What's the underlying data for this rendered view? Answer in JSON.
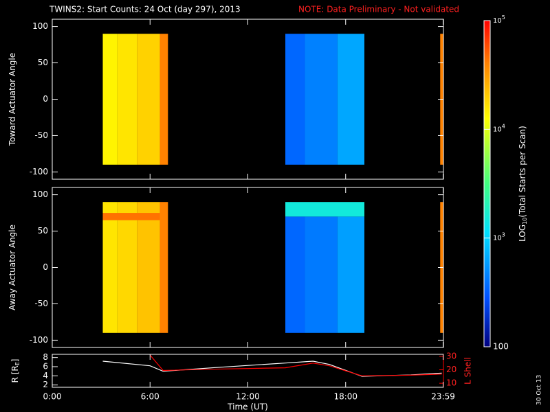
{
  "header": {
    "title": "TWINS2: Start Counts: 24 Oct (day 297), 2013",
    "note": "NOTE: Data Preliminary - Not validated",
    "date_stamp": "30 Oct 13"
  },
  "colorbar": {
    "label": "LOG",
    "label_sub": "10",
    "label_end": "(Total Starts per Scan)",
    "lim": [
      100,
      100000
    ],
    "log": true,
    "colors": [
      "#000080",
      "#0050ff",
      "#00e0ff",
      "#40ff80",
      "#ffff00",
      "#ff8000",
      "#ff0000"
    ],
    "stops": [
      0,
      0.15,
      0.35,
      0.5,
      0.7,
      0.87,
      1
    ],
    "ticks": [
      {
        "value": 100000,
        "label": "10",
        "label_sup": "5"
      },
      {
        "value": 10000,
        "label": "10",
        "label_sup": "4"
      },
      {
        "value": 1000,
        "label": "10",
        "label_sup": "3"
      },
      100
    ]
  },
  "chart_data": [
    {
      "type": "heatmap",
      "ylabel": "Toward Actuator Angle",
      "xlim": [
        0,
        24
      ],
      "ylim": [
        -110,
        110
      ],
      "yticks": [
        100,
        50,
        0,
        -50,
        -100
      ],
      "cells": [
        {
          "x": [
            3.1,
            4.0
          ],
          "y": [
            -90,
            90
          ],
          "value": 14000
        },
        {
          "x": [
            4.0,
            5.2
          ],
          "y": [
            -90,
            90
          ],
          "value": 16000
        },
        {
          "x": [
            5.2,
            6.6
          ],
          "y": [
            -90,
            90
          ],
          "value": 19000
        },
        {
          "x": [
            6.6,
            7.1
          ],
          "y": [
            -90,
            90
          ],
          "value": 40000
        },
        {
          "x": [
            14.3,
            15.5
          ],
          "y": [
            -90,
            90
          ],
          "value": 350
        },
        {
          "x": [
            15.5,
            17.5
          ],
          "y": [
            -90,
            90
          ],
          "value": 450
        },
        {
          "x": [
            17.5,
            19.15
          ],
          "y": [
            -90,
            90
          ],
          "value": 650
        },
        {
          "x": [
            23.8,
            24
          ],
          "y": [
            -90,
            90
          ],
          "value": 40000
        }
      ]
    },
    {
      "type": "heatmap",
      "ylabel": "Away Actuator Angle",
      "xlim": [
        0,
        24
      ],
      "ylim": [
        -110,
        110
      ],
      "yticks": [
        100,
        50,
        0,
        -50,
        -100
      ],
      "cells": [
        {
          "x": [
            3.1,
            4.0
          ],
          "y": [
            -90,
            90
          ],
          "value": 16000
        },
        {
          "x": [
            4.0,
            5.2
          ],
          "y": [
            -90,
            90
          ],
          "value": 18000
        },
        {
          "x": [
            5.2,
            6.6
          ],
          "y": [
            -90,
            90
          ],
          "value": 22000
        },
        {
          "x": [
            3.1,
            6.6
          ],
          "y": [
            65,
            75
          ],
          "value": 45000
        },
        {
          "x": [
            6.6,
            7.1
          ],
          "y": [
            -90,
            90
          ],
          "value": 40000
        },
        {
          "x": [
            14.3,
            15.5
          ],
          "y": [
            -90,
            70
          ],
          "value": 350
        },
        {
          "x": [
            15.5,
            17.5
          ],
          "y": [
            -90,
            70
          ],
          "value": 420
        },
        {
          "x": [
            17.5,
            19.15
          ],
          "y": [
            -90,
            70
          ],
          "value": 600
        },
        {
          "x": [
            14.3,
            19.15
          ],
          "y": [
            70,
            90
          ],
          "value": 1500
        },
        {
          "x": [
            23.8,
            24
          ],
          "y": [
            -90,
            90
          ],
          "value": 40000
        }
      ]
    },
    {
      "type": "line",
      "xlabel": "Time (UT)",
      "ylabel": "R [R",
      "ylabel_sub": "E",
      "ylabel_end": "]",
      "y2label": "L Shell",
      "xlim": [
        0,
        24
      ],
      "xticks": [
        {
          "value": 0,
          "label": "0:00"
        },
        {
          "value": 6,
          "label": "6:00"
        },
        {
          "value": 12,
          "label": "12:00"
        },
        {
          "value": 18,
          "label": "18:00"
        },
        {
          "value": 23.983,
          "label": "23:59"
        }
      ],
      "ylim": [
        1.5,
        8.7
      ],
      "yticks": [
        2,
        4,
        6,
        8
      ],
      "y2lim": [
        7,
        31.5
      ],
      "y2ticks": [
        10,
        20,
        30
      ],
      "x": [
        3.1,
        6.0,
        6.8,
        10,
        14.3,
        16,
        17,
        19,
        22,
        23.9
      ],
      "series": [
        {
          "color": "#ffffff",
          "values": [
            7.2,
            6.2,
            5.0,
            5.8,
            6.8,
            7.2,
            6.5,
            3.9,
            4.2,
            4.6
          ]
        },
        {
          "color": "#ff0000",
          "axis": "y2",
          "values": [
            null,
            31,
            19.5,
            20.5,
            21.5,
            25,
            23,
            15.5,
            16,
            16.8
          ]
        }
      ]
    }
  ]
}
